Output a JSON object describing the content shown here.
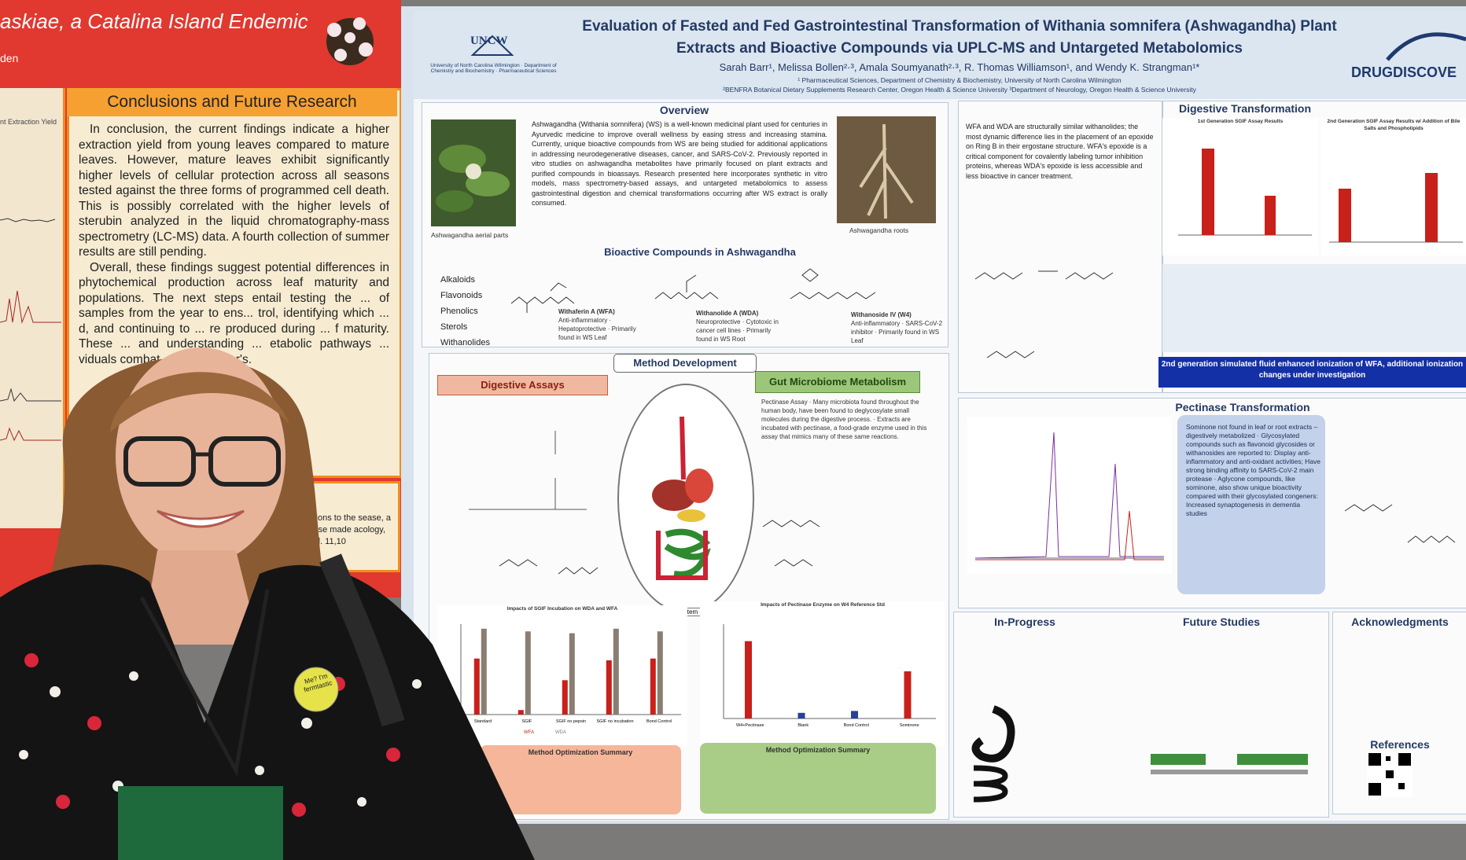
{
  "left_poster": {
    "title": "askiae, a Catalina Island Endemic",
    "subtitle": "den",
    "conclusions_heading": "Conclusions and Future Research",
    "conclusions_p1": "In conclusion, the current findings indicate a higher extraction yield from young leaves compared to mature leaves. However, mature leaves exhibit significantly higher levels of cellular protection across all seasons tested against the three forms of programmed cell death. This is possibly correlated with the higher levels of sterubin analyzed in the liquid chromatography-mass spectrometry (LC-MS) data. A fourth collection of summer results are still pending.",
    "conclusions_p2": "Overall, these findings suggest potential differences in phytochemical production across leaf maturity and populations. The next steps entail testing the ... of samples from the year to ens... trol, identifying which ... d, and continuing to ... re produced during ... f maturity. These ... and understanding ... etabolic pathways ... viduals combat ... s Alzheimer's.",
    "left_col_label": "nt Extraction Yield",
    "ref_text": "ctions to the sease, a case made acology, vol. 11,10"
  },
  "poster": {
    "title_line1": "Evaluation of Fasted and Fed Gastrointestinal Transformation of Withania somnifera (Ashwagandha) Plant",
    "title_line2": "Extracts and Bioactive Compounds via UPLC-MS and Untargeted Metabolomics",
    "authors": "Sarah Barr¹, Melissa Bollen²·³, Amala Soumyanath²·³, R. Thomas Williamson¹, and Wendy K. Strangman¹*",
    "affiliation1": "¹ Pharmaceutical Sciences, Department of Chemistry & Biochemistry, University of North Carolina Wilmington",
    "affiliation2": "²BENFRA Botanical Dietary Supplements Research Center, Oregon Health & Science University  ³Department of Neurology, Oregon Health & Science University",
    "uncw_logo": "UNCW",
    "uncw_sub": "University of North Carolina Wilmington · Department of Chemistry and Biochemistry · Pharmaceutical Sciences",
    "drug_logo": "DRUGDISCOVE",
    "overview_title": "Overview",
    "overview_text": "Ashwagandha (Withania somnifera) (WS) is a well-known medicinal plant used for centuries in Ayurvedic medicine to improve overall wellness by easing stress and increasing stamina. Currently, unique bioactive compounds from WS are being studied for additional applications in addressing neurodegenerative diseases, cancer, and SARS-CoV-2. Previously reported in vitro studies on ashwagandha metabolites have primarily focused on plant extracts and purified compounds in bioassays. Research presented here incorporates synthetic in vitro models, mass spectrometry-based assays, and untargeted metabolomics to assess gastrointestinal digestion and chemical transformations occurring after WS extract is orally consumed.",
    "photo1_caption": "Ashwagandha aerial parts",
    "photo2_caption": "Ashwagandha roots",
    "bioactive_title": "Bioactive Compounds in Ashwagandha",
    "bioactive_list": [
      "Alkaloids",
      "Flavonoids",
      "Phenolics",
      "Sterols",
      "Withanolides"
    ],
    "compounds": [
      {
        "name": "Withaferin A (WFA)",
        "notes": "Anti-inflammatory · Hepatoprotective · Primarily found in WS Leaf"
      },
      {
        "name": "Withanolide A (WDA)",
        "notes": "Neuroprotective · Cytotoxic in cancer cell lines · Primarily found in WS Root"
      },
      {
        "name": "Withanoside IV (W4)",
        "notes": "Anti-inflammatory · SARS-CoV-2 inhibitor · Primarily found in WS Leaf"
      }
    ],
    "method_title": "Method Development",
    "digestive_assays": "Digestive Assays",
    "gut_microbiome": "Gut Microbiome Metabolism",
    "schematic_label": "Digestive System Schematic",
    "dig_chart_title": "Impacts of SGIF Incubation on WDA and WFA",
    "pec_chart_title": "Impacts of Pectinase Enzyme on W4 Reference Std",
    "method_summary": "Method Optimization Summary",
    "pectinase_assay_text": "Pectinase Assay · Many microbiota found throughout the human body, have been found to deglycosylate small molecules during the digestive process. · Extracts are incubated with pectinase, a food-grade enzyme used in this assay that mimics many of these same reactions.",
    "wfa_text": "WFA and WDA are structurally similar withanolides; the most dynamic difference lies in the placement of an epoxide on Ring B in their ergostane structure. WFA's epoxide is a critical component for covalently labeling tumor inhibition proteins, whereas WDA's epoxide is less accessible and less bioactive in cancer treatment.",
    "digestive_transformation": "Digestive Transformation",
    "dt_chart1_title": "1st Generation SGIF Assay Results",
    "dt_chart2_title": "2nd Generation SGIF Assay Results w/ Addition of Bile Salts and Phospholipids",
    "dt_banner": "2nd generation simulated fluid enhanced ionization of WFA, additional ionization changes under investigation",
    "pectinase_transformation": "Pectinase Transformation",
    "pec_blue_text": "Sominone not found in leaf or root extracts – digestively metabolized · Glycosylated compounds such as flavonoid glycosides or withanosides are reported to: Display anti-inflammatory and anti-oxidant activities; Have strong binding affinity to SARS-CoV-2 main protease · Aglycone compounds, like sominone, also show unique bioactivity compared with their glycosylated congeners: Increased synaptogenesis in dementia studies",
    "in_progress": "In-Progress",
    "future_studies": "Future Studies",
    "acknowledgments": "Acknowledgments",
    "references": "References"
  },
  "badge": "Me? I'm fermtastic",
  "chart_data": [
    {
      "type": "bar",
      "title": "Impacts of SGIF Incubation on WDA and WFA",
      "categories": [
        "Standard",
        "SGIF",
        "SGIF no pepsin",
        "SGIF no incubation",
        "Bond Control"
      ],
      "series": [
        {
          "name": "WFA",
          "values": [
            0.62,
            0.05,
            0.38,
            0.6,
            0.62
          ]
        },
        {
          "name": "WDA",
          "values": [
            0.95,
            0.92,
            0.9,
            0.95,
            0.92
          ]
        }
      ],
      "ylim": [
        0,
        1
      ]
    },
    {
      "type": "bar",
      "title": "Impacts of Pectinase Enzyme on W4 Reference Std",
      "categories": [
        "W4+Pectinase",
        "Blank",
        "Bond Control",
        "Sominone"
      ],
      "values": [
        0.82,
        0.06,
        0.08,
        0.5
      ],
      "ylim": [
        0,
        1
      ]
    }
  ]
}
